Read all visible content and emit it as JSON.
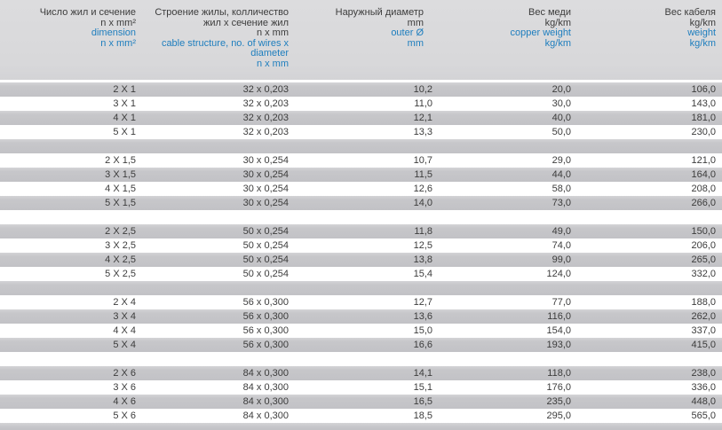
{
  "table": {
    "columns": [
      {
        "key": "dimension",
        "ru_lines": [
          "Число жил и сечение",
          "n x mm²"
        ],
        "en_lines": [
          "dimension",
          "n x mm²"
        ]
      },
      {
        "key": "cable-structure",
        "ru_lines": [
          "Строение жилы, колличество",
          "жил x сечение жил",
          "n x mm"
        ],
        "en_lines": [
          "cable structure, no. of wires x",
          "diameter",
          "n x mm"
        ]
      },
      {
        "key": "outer-diameter",
        "ru_lines": [
          "Наружный диаметр",
          "mm"
        ],
        "en_lines": [
          "outer Ø",
          "mm"
        ]
      },
      {
        "key": "copper-weight",
        "ru_lines": [
          "Вес меди",
          "kg/km"
        ],
        "en_lines": [
          "copper weight",
          "kg/km"
        ]
      },
      {
        "key": "cable-weight",
        "ru_lines": [
          "Вес кабеля",
          "kg/km"
        ],
        "en_lines": [
          "weight",
          "kg/km"
        ]
      }
    ],
    "groups": [
      {
        "rows": [
          [
            "2 X 1",
            "32 x 0,203",
            "10,2",
            "20,0",
            "106,0"
          ],
          [
            "3 X 1",
            "32 x 0,203",
            "11,0",
            "30,0",
            "143,0"
          ],
          [
            "4 X 1",
            "32 x 0,203",
            "12,1",
            "40,0",
            "181,0"
          ],
          [
            "5 X 1",
            "32 x 0,203",
            "13,3",
            "50,0",
            "230,0"
          ]
        ]
      },
      {
        "rows": [
          [
            "2 X 1,5",
            "30 x 0,254",
            "10,7",
            "29,0",
            "121,0"
          ],
          [
            "3 X 1,5",
            "30 x 0,254",
            "11,5",
            "44,0",
            "164,0"
          ],
          [
            "4 X 1,5",
            "30 x 0,254",
            "12,6",
            "58,0",
            "208,0"
          ],
          [
            "5 X 1,5",
            "30 x 0,254",
            "14,0",
            "73,0",
            "266,0"
          ]
        ]
      },
      {
        "rows": [
          [
            "2 X 2,5",
            "50 x 0,254",
            "11,8",
            "49,0",
            "150,0"
          ],
          [
            "3 X 2,5",
            "50 x 0,254",
            "12,5",
            "74,0",
            "206,0"
          ],
          [
            "4 X 2,5",
            "50 x 0,254",
            "13,8",
            "99,0",
            "265,0"
          ],
          [
            "5 X 2,5",
            "50 x 0,254",
            "15,4",
            "124,0",
            "332,0"
          ]
        ]
      },
      {
        "rows": [
          [
            "2 X 4",
            "56 x 0,300",
            "12,7",
            "77,0",
            "188,0"
          ],
          [
            "3 X 4",
            "56 x 0,300",
            "13,6",
            "116,0",
            "262,0"
          ],
          [
            "4 X 4",
            "56 x 0,300",
            "15,0",
            "154,0",
            "337,0"
          ],
          [
            "5 X 4",
            "56 x 0,300",
            "16,6",
            "193,0",
            "415,0"
          ]
        ]
      },
      {
        "rows": [
          [
            "2 X 6",
            "84 x 0,300",
            "14,1",
            "118,0",
            "238,0"
          ],
          [
            "3 X 6",
            "84 x 0,300",
            "15,1",
            "176,0",
            "336,0"
          ],
          [
            "4 X 6",
            "84 x 0,300",
            "16,5",
            "235,0",
            "448,0"
          ],
          [
            "5 X 6",
            "84 x 0,300",
            "18,5",
            "295,0",
            "565,0"
          ]
        ]
      }
    ]
  },
  "colors": {
    "header_bg": "#d9d9db",
    "row_gray": "#c3c3c7",
    "row_white": "#ffffff",
    "text_dark": "#3c3c3c",
    "accent_blue": "#1e7ebe"
  }
}
